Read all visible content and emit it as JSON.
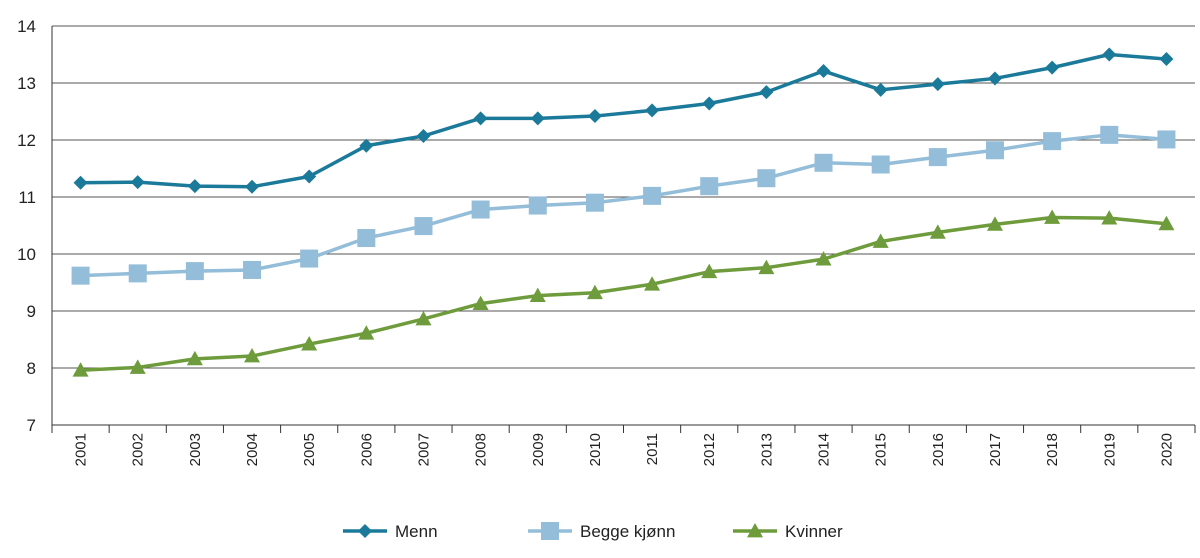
{
  "chart_data": {
    "type": "line",
    "x": [
      "2001",
      "2002",
      "2003",
      "2004",
      "2005",
      "2006",
      "2007",
      "2008",
      "2009",
      "2010",
      "2011",
      "2012",
      "2013",
      "2014",
      "2015",
      "2016",
      "2017",
      "2018",
      "2019",
      "2020"
    ],
    "ylim": [
      7,
      14
    ],
    "yticks": [
      7,
      8,
      9,
      10,
      11,
      12,
      13,
      14
    ],
    "grid": "horizontal",
    "legend_placement": "bottom",
    "series": [
      {
        "name": "Menn",
        "color": "#1b7a9a",
        "marker": "diamond",
        "values": [
          11.25,
          11.26,
          11.19,
          11.18,
          11.36,
          11.9,
          12.07,
          12.38,
          12.38,
          12.42,
          12.52,
          12.64,
          12.84,
          13.21,
          12.88,
          12.98,
          13.08,
          13.27,
          13.5,
          13.42
        ]
      },
      {
        "name": "Begge kjønn",
        "color": "#93bdd9",
        "marker": "square",
        "values": [
          9.62,
          9.66,
          9.7,
          9.72,
          9.92,
          10.28,
          10.49,
          10.78,
          10.85,
          10.9,
          11.02,
          11.19,
          11.33,
          11.6,
          11.57,
          11.7,
          11.82,
          11.98,
          12.09,
          12.01
        ]
      },
      {
        "name": "Kvinner",
        "color": "#6e9b3b",
        "marker": "triangle",
        "values": [
          7.96,
          8.01,
          8.16,
          8.21,
          8.42,
          8.61,
          8.86,
          9.13,
          9.27,
          9.32,
          9.47,
          9.69,
          9.76,
          9.91,
          10.22,
          10.38,
          10.52,
          10.64,
          10.63,
          10.53
        ]
      }
    ]
  }
}
